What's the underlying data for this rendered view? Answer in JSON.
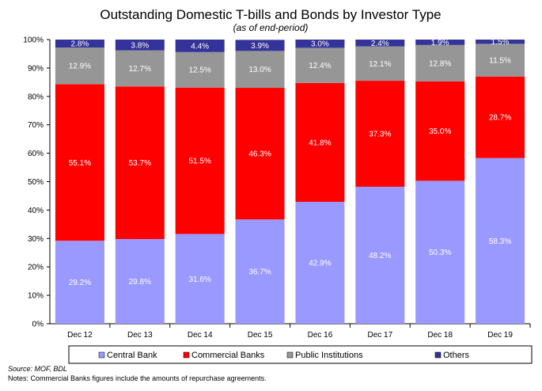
{
  "chart_data": {
    "type": "bar",
    "stacked": true,
    "percent": true,
    "title": "Outstanding Domestic T-bills and Bonds  by Investor Type",
    "subtitle": "(as of end-period)",
    "categories": [
      "Dec 12",
      "Dec 13",
      "Dec 14",
      "Dec 15",
      "Dec 16",
      "Dec 17",
      "Dec 18",
      "Dec 19"
    ],
    "yticks": [
      "0%",
      "10%",
      "20%",
      "30%",
      "40%",
      "50%",
      "60%",
      "70%",
      "80%",
      "90%",
      "100%"
    ],
    "ylim": [
      0,
      100
    ],
    "series": [
      {
        "name": "Central Bank",
        "color": "#9999ff",
        "label_color": "#ffffff",
        "values": [
          29.2,
          29.8,
          31.6,
          36.7,
          42.9,
          48.2,
          50.3,
          58.3
        ],
        "labels": [
          "29.2%",
          "29.8%",
          "31.6%",
          "36.7%",
          "42.9%",
          "48.2%",
          "50.3%",
          "58.3%"
        ]
      },
      {
        "name": "Commercial Banks",
        "color": "#ff0000",
        "label_color": "#ffffff",
        "values": [
          55.1,
          53.7,
          51.5,
          46.3,
          41.8,
          37.3,
          35.0,
          28.7
        ],
        "labels": [
          "55.1%",
          "53.7%",
          "51.5%",
          "46.3%",
          "41.8%",
          "37.3%",
          "35.0%",
          "28.7%"
        ]
      },
      {
        "name": "Public Institutions",
        "color": "#969696",
        "label_color": "#ffffff",
        "values": [
          12.9,
          12.7,
          12.5,
          13.0,
          12.4,
          12.1,
          12.8,
          11.5
        ],
        "labels": [
          "12.9%",
          "12.7%",
          "12.5%",
          "13.0%",
          "12.4%",
          "12.1%",
          "12.8%",
          "11.5%"
        ]
      },
      {
        "name": "Others",
        "color": "#333399",
        "label_color": "#ffffff",
        "values": [
          2.8,
          3.8,
          4.4,
          3.9,
          3.0,
          2.4,
          1.9,
          1.5
        ],
        "labels": [
          "2.8%",
          "3.8%",
          "4.4%",
          "3.9%",
          "3.0%",
          "2.4%",
          "1.9%",
          "1.5%"
        ]
      }
    ],
    "legend_position": "bottom",
    "grid": false
  },
  "source": "Source: MOF, BDL",
  "notes": "Notes: Commercial Banks figures include the amounts of repurchase agreements."
}
